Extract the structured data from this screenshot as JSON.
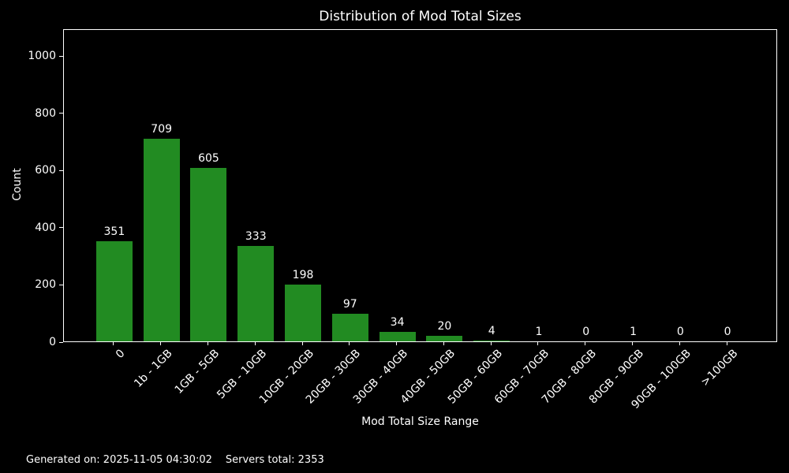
{
  "background_color": "#000000",
  "text_color": "#ffffff",
  "chart_data": {
    "type": "bar",
    "title": "Distribution of Mod Total Sizes",
    "xlabel": "Mod Total Size Range",
    "ylabel": "Count",
    "categories": [
      "0",
      "1b - 1GB",
      "1GB - 5GB",
      "5GB - 10GB",
      "10GB - 20GB",
      "20GB - 30GB",
      "30GB - 40GB",
      "40GB - 50GB",
      "50GB - 60GB",
      "60GB - 70GB",
      "70GB - 80GB",
      "80GB - 90GB",
      "90GB - 100GB",
      ">100GB"
    ],
    "values": [
      351,
      709,
      605,
      333,
      198,
      97,
      34,
      20,
      4,
      1,
      0,
      1,
      0,
      0
    ],
    "bar_color": "#228b22",
    "yticks": [
      0,
      200,
      400,
      600,
      800,
      1000
    ],
    "ylim": [
      0,
      1093
    ],
    "grid": false,
    "legend": null,
    "bar_value_labels_shown": true,
    "xtick_rotation_deg": 45
  },
  "footer": {
    "generated_on": "Generated on: 2025-11-05 04:30:02",
    "servers_total": "Servers total: 2353"
  }
}
